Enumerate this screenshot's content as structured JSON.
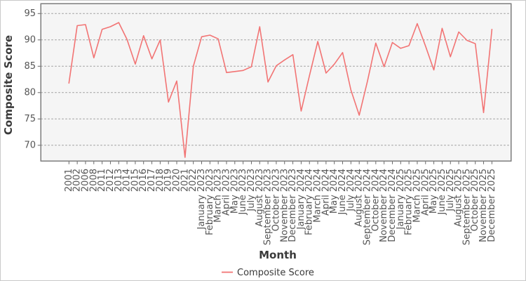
{
  "chart_data": {
    "type": "line",
    "title": "",
    "xlabel": "Month",
    "ylabel": "Composite Score",
    "legend_position": "bottom center",
    "grid": "horizontal dashed",
    "ylim": [
      67.0,
      96.8
    ],
    "yticks": [
      70,
      75,
      80,
      85,
      90,
      95
    ],
    "categories": [
      "2001",
      "2002",
      "2006",
      "2008",
      "2011",
      "2012",
      "2013",
      "2014",
      "2015",
      "2016",
      "2017",
      "2018",
      "2019",
      "2020",
      "2021",
      "2022",
      "January 2023",
      "February 2023",
      "March 2023",
      "April 2023",
      "May 2023",
      "June 2023",
      "July 2023",
      "August 2023",
      "September 2023",
      "October 2023",
      "November 2023",
      "December 2023",
      "January 2024",
      "February 2024",
      "March 2024",
      "April 2024",
      "May 2024",
      "June 2024",
      "July 2024",
      "August 2024",
      "September 2024",
      "October 2024",
      "November 2024",
      "December 2024",
      "January 2025",
      "February 2025",
      "March 2025",
      "April 2025",
      "May 2025",
      "June 2025",
      "July 2025",
      "August 2025",
      "September 2025",
      "October 2025",
      "November 2025",
      "December 2025"
    ],
    "series": [
      {
        "name": "Composite Score",
        "values": [
          81.8,
          92.7,
          92.9,
          86.6,
          92.0,
          92.5,
          93.3,
          90.1,
          85.4,
          90.8,
          86.4,
          90.0,
          78.2,
          82.2,
          67.7,
          85.0,
          90.6,
          90.9,
          90.2,
          83.8,
          84.0,
          84.2,
          84.9,
          92.5,
          82.0,
          85.1,
          86.2,
          87.2,
          76.5,
          83.2,
          89.7,
          83.7,
          85.4,
          87.6,
          80.5,
          75.7,
          82.2,
          89.4,
          84.9,
          89.5,
          88.4,
          88.9,
          93.1,
          88.8,
          84.3,
          92.2,
          86.8,
          91.5,
          89.9,
          89.3,
          76.2,
          92.0
        ]
      }
    ],
    "colors": {
      "line": "#f27474",
      "plot_bg": "#f5f5f5",
      "grid": "#999999",
      "spine": "#7d7d7d",
      "tick_label": "#555555",
      "axis_title": "#3a3a3a"
    }
  }
}
